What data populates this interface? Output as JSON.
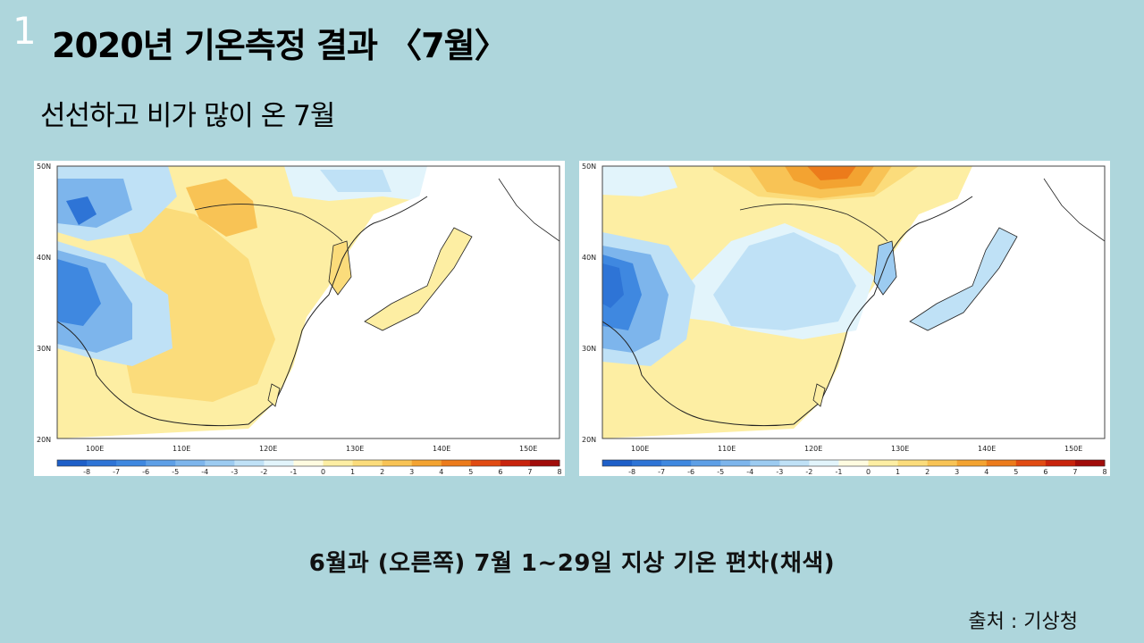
{
  "slide_number": "1",
  "title": "2020년 기온측정 결과 〈7월〉",
  "subtitle": "선선하고 비가 많이 온 7월",
  "caption": "6월과 (오른쪽) 7월 1~29일 지상 기온 편차(채색)",
  "source": "출처 : 기상청",
  "maps": [
    {
      "month": "6월",
      "lat_ticks": [
        "50N",
        "40N",
        "30N",
        "20N"
      ],
      "lon_ticks": [
        "100E",
        "110E",
        "120E",
        "130E",
        "140E",
        "150E"
      ]
    },
    {
      "month": "7월",
      "lat_ticks": [
        "50N",
        "40N",
        "30N",
        "20N"
      ],
      "lon_ticks": [
        "100E",
        "110E",
        "120E",
        "130E",
        "140E",
        "150E"
      ]
    }
  ],
  "colorbar": {
    "labels": [
      "-8",
      "-7",
      "-6",
      "-5",
      "-4",
      "-3",
      "-2",
      "-1",
      "0",
      "1",
      "2",
      "3",
      "4",
      "5",
      "6",
      "7",
      "8"
    ],
    "colors": [
      "#1e5fc8",
      "#2e74d6",
      "#3f88e0",
      "#5d9fe6",
      "#7db5ec",
      "#9ccbf1",
      "#bfe1f6",
      "#e2f4fb",
      "#fffbe0",
      "#fdeea3",
      "#fbdc7b",
      "#f8c355",
      "#f3a331",
      "#ec7b1b",
      "#e14b12",
      "#c8230c",
      "#a10c0a"
    ]
  }
}
